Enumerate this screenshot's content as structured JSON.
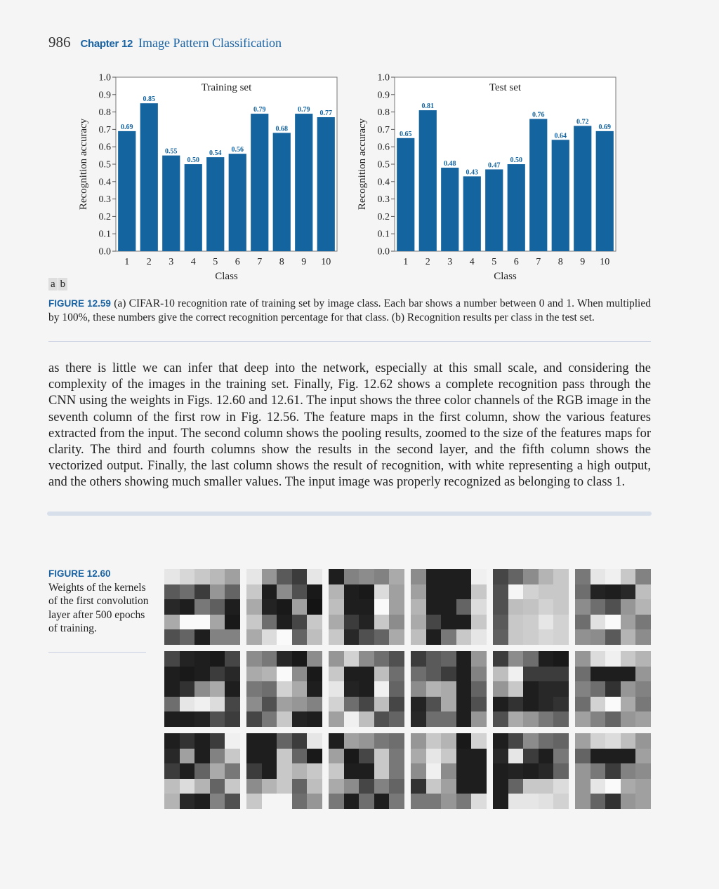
{
  "header": {
    "page_number": "986",
    "chapter_label": "Chapter 12",
    "chapter_title": "Image Pattern Classification"
  },
  "chart_data": [
    {
      "type": "bar",
      "title": "Training set",
      "xlabel": "Class",
      "ylabel": "Recognition accuracy",
      "categories": [
        "1",
        "2",
        "3",
        "4",
        "5",
        "6",
        "7",
        "8",
        "9",
        "10"
      ],
      "values": [
        0.69,
        0.85,
        0.55,
        0.5,
        0.54,
        0.56,
        0.79,
        0.68,
        0.79,
        0.77
      ],
      "value_labels": [
        "0.69",
        "0.85",
        "0.55",
        "0.50",
        "0.54",
        "0.56",
        "0.79",
        "0.68",
        "0.79",
        "0.77"
      ],
      "ylim": [
        0,
        1.0
      ],
      "yticks": [
        "0.0",
        "0.1",
        "0.2",
        "0.3",
        "0.4",
        "0.5",
        "0.6",
        "0.7",
        "0.8",
        "0.9",
        "1.0"
      ],
      "grid": false,
      "bar_color": "#1464a0",
      "label_color": "#1464a0"
    },
    {
      "type": "bar",
      "title": "Test set",
      "xlabel": "Class",
      "ylabel": "Recognition accuracy",
      "categories": [
        "1",
        "2",
        "3",
        "4",
        "5",
        "6",
        "7",
        "8",
        "9",
        "10"
      ],
      "values": [
        0.65,
        0.81,
        0.48,
        0.43,
        0.47,
        0.5,
        0.76,
        0.64,
        0.72,
        0.69
      ],
      "value_labels": [
        "0.65",
        "0.81",
        "0.48",
        "0.43",
        "0.47",
        "0.50",
        "0.76",
        "0.64",
        "0.72",
        "0.69"
      ],
      "ylim": [
        0,
        1.0
      ],
      "yticks": [
        "0.0",
        "0.1",
        "0.2",
        "0.3",
        "0.4",
        "0.5",
        "0.6",
        "0.7",
        "0.8",
        "0.9",
        "1.0"
      ],
      "grid": false,
      "bar_color": "#1464a0",
      "label_color": "#1464a0"
    }
  ],
  "panel_labels": [
    "a",
    "b"
  ],
  "figure_12_59": {
    "label": "FIGURE 12.59",
    "caption": "(a) CIFAR-10 recognition rate of training set by image class. Each bar shows a number between 0 and 1. When multiplied by 100%, these numbers give the correct recognition percentage for that class. (b) Recognition results per class in the test set."
  },
  "body_paragraph": "as there is little we can infer that deep into the network, especially at this small scale, and considering the complexity of the images in the training set. Finally, Fig. 12.62 shows a complete recognition pass through the CNN using the weights in Figs. 12.60 and 12.61. The input shows the three color channels of the RGB image in the seventh column of the first row in Fig. 12.56. The feature maps in the first column, show the various features extracted from the input. The second column shows the pooling results, zoomed to the size of the features maps for clarity. The third and fourth columns show the results in the second layer, and the fifth column shows the vectorized output. Finally, the last column shows the result of recognition, with white representing a high output, and the others showing much smaller values. The input image was properly recognized as belonging to class 1.",
  "figure_12_60": {
    "label": "FIGURE 12.60",
    "caption": "Weights of the kernels of the first convolution layer after 500 epochs of training."
  },
  "kernels": [
    [
      [
        230,
        215,
        200,
        185,
        160
      ],
      [
        90,
        110,
        60,
        150,
        100
      ],
      [
        40,
        30,
        120,
        95,
        30
      ],
      [
        170,
        250,
        250,
        165,
        25
      ],
      [
        80,
        100,
        30,
        130,
        130
      ]
    ],
    [
      [
        230,
        150,
        90,
        60,
        230
      ],
      [
        200,
        30,
        140,
        80,
        25
      ],
      [
        170,
        35,
        25,
        160,
        20
      ],
      [
        200,
        110,
        30,
        70,
        200
      ],
      [
        170,
        220,
        250,
        100,
        190
      ]
    ],
    [
      [
        30,
        130,
        140,
        130,
        170
      ],
      [
        180,
        30,
        25,
        220,
        160
      ],
      [
        190,
        30,
        30,
        250,
        160
      ],
      [
        170,
        60,
        35,
        200,
        140
      ],
      [
        200,
        40,
        80,
        100,
        170
      ]
    ],
    [
      [
        140,
        30,
        30,
        30,
        240
      ],
      [
        160,
        30,
        30,
        30,
        200
      ],
      [
        180,
        30,
        30,
        100,
        220
      ],
      [
        170,
        70,
        30,
        30,
        200
      ],
      [
        190,
        30,
        120,
        200,
        230
      ]
    ],
    [
      [
        70,
        100,
        140,
        180,
        200
      ],
      [
        80,
        245,
        210,
        200,
        200
      ],
      [
        80,
        190,
        195,
        210,
        200
      ],
      [
        90,
        200,
        205,
        230,
        210
      ],
      [
        95,
        200,
        205,
        215,
        210
      ]
    ],
    [
      [
        120,
        230,
        240,
        200,
        130
      ],
      [
        110,
        35,
        30,
        40,
        190
      ],
      [
        140,
        110,
        80,
        150,
        180
      ],
      [
        110,
        225,
        250,
        160,
        120
      ],
      [
        145,
        140,
        90,
        180,
        140
      ]
    ],
    [
      [
        70,
        35,
        30,
        25,
        70
      ],
      [
        30,
        25,
        30,
        60,
        40
      ],
      [
        30,
        50,
        140,
        170,
        30
      ],
      [
        110,
        230,
        240,
        220,
        70
      ],
      [
        30,
        30,
        35,
        80,
        60
      ]
    ],
    [
      [
        140,
        120,
        40,
        25,
        140
      ],
      [
        170,
        180,
        250,
        140,
        25
      ],
      [
        120,
        110,
        210,
        170,
        30
      ],
      [
        140,
        80,
        160,
        150,
        130
      ],
      [
        70,
        120,
        200,
        35,
        30
      ]
    ],
    [
      [
        150,
        210,
        140,
        110,
        80
      ],
      [
        200,
        30,
        30,
        190,
        110
      ],
      [
        230,
        35,
        30,
        240,
        100
      ],
      [
        210,
        110,
        70,
        190,
        70
      ],
      [
        160,
        240,
        190,
        80,
        100
      ]
    ],
    [
      [
        60,
        90,
        100,
        30,
        150
      ],
      [
        110,
        90,
        60,
        30,
        130
      ],
      [
        140,
        180,
        170,
        30,
        100
      ],
      [
        35,
        80,
        170,
        30,
        80
      ],
      [
        40,
        110,
        110,
        30,
        150
      ]
    ],
    [
      [
        60,
        140,
        110,
        30,
        25
      ],
      [
        190,
        240,
        60,
        60,
        60
      ],
      [
        150,
        200,
        30,
        40,
        40
      ],
      [
        30,
        50,
        30,
        40,
        50
      ],
      [
        80,
        170,
        150,
        120,
        100
      ]
    ],
    [
      [
        150,
        220,
        240,
        200,
        180
      ],
      [
        110,
        30,
        30,
        30,
        150
      ],
      [
        130,
        110,
        50,
        150,
        130
      ],
      [
        110,
        210,
        250,
        170,
        120
      ],
      [
        160,
        130,
        100,
        150,
        160
      ]
    ],
    [
      [
        30,
        50,
        30,
        60,
        240
      ],
      [
        40,
        160,
        30,
        130,
        200
      ],
      [
        60,
        30,
        100,
        170,
        120
      ],
      [
        190,
        220,
        180,
        100,
        200
      ],
      [
        180,
        40,
        30,
        130,
        80
      ]
    ],
    [
      [
        30,
        30,
        100,
        60,
        230
      ],
      [
        30,
        30,
        200,
        100,
        25
      ],
      [
        60,
        30,
        200,
        180,
        200
      ],
      [
        140,
        180,
        200,
        100,
        190
      ],
      [
        200,
        245,
        245,
        110,
        150
      ]
    ],
    [
      [
        30,
        160,
        150,
        120,
        110
      ],
      [
        160,
        25,
        70,
        200,
        120
      ],
      [
        200,
        30,
        30,
        200,
        120
      ],
      [
        170,
        140,
        70,
        130,
        100
      ],
      [
        120,
        30,
        110,
        30,
        120
      ]
    ],
    [
      [
        150,
        200,
        180,
        25,
        210
      ],
      [
        170,
        230,
        200,
        30,
        30
      ],
      [
        140,
        240,
        140,
        30,
        30
      ],
      [
        50,
        200,
        160,
        30,
        30
      ],
      [
        120,
        120,
        150,
        120,
        220
      ]
    ],
    [
      [
        30,
        70,
        140,
        110,
        100
      ],
      [
        40,
        230,
        60,
        30,
        120
      ],
      [
        30,
        35,
        30,
        40,
        100
      ],
      [
        30,
        100,
        200,
        200,
        220
      ],
      [
        30,
        230,
        230,
        225,
        210
      ]
    ],
    [
      [
        160,
        210,
        220,
        190,
        150
      ],
      [
        100,
        30,
        30,
        30,
        160
      ],
      [
        150,
        120,
        60,
        130,
        140
      ],
      [
        150,
        230,
        250,
        170,
        160
      ],
      [
        150,
        100,
        50,
        150,
        160
      ]
    ]
  ]
}
